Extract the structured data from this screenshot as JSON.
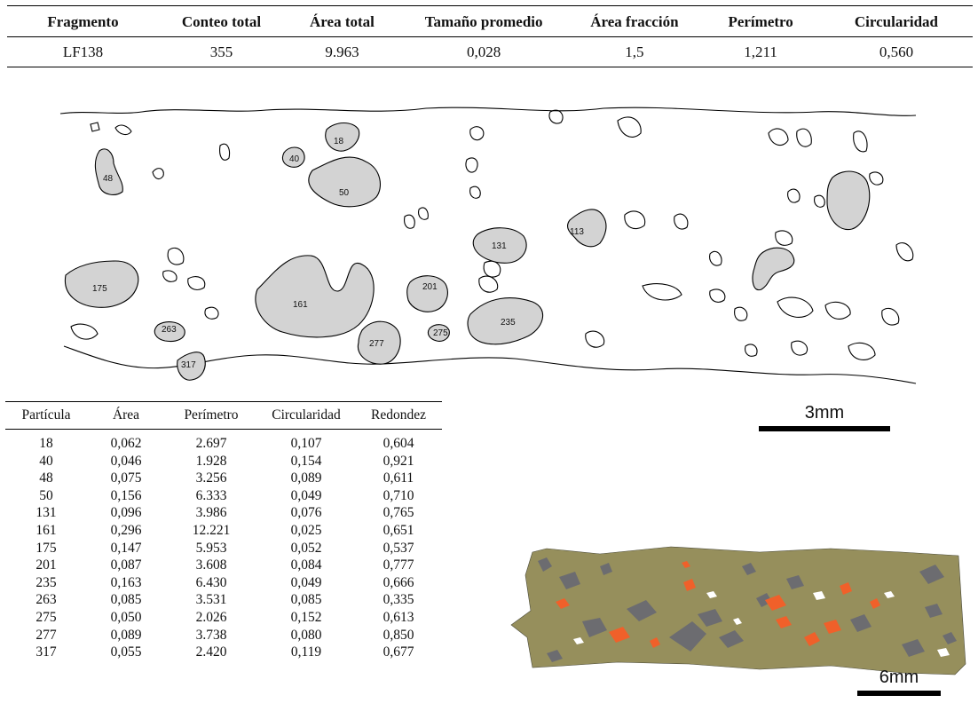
{
  "summary_table": {
    "headers": [
      "Fragmento",
      "Conteo total",
      "Área total",
      "Tamaño promedio",
      "Área fracción",
      "Perímetro",
      "Circularidad"
    ],
    "row": [
      "LF138",
      "355",
      "9.963",
      "0,028",
      "1,5",
      "1,211",
      "0,560"
    ]
  },
  "figure": {
    "particle_labels": [
      "18",
      "40",
      "48",
      "50",
      "131",
      "113",
      "175",
      "161",
      "201",
      "235",
      "263",
      "275",
      "277",
      "317"
    ]
  },
  "scale_bars": {
    "top": "3mm",
    "bottom": "6mm"
  },
  "particle_table": {
    "headers": [
      "Partícula",
      "Área",
      "Perímetro",
      "Circularidad",
      "Redondez"
    ],
    "rows": [
      [
        "18",
        "0,062",
        "2.697",
        "0,107",
        "0,604"
      ],
      [
        "40",
        "0,046",
        "1.928",
        "0,154",
        "0,921"
      ],
      [
        "48",
        "0,075",
        "3.256",
        "0,089",
        "0,611"
      ],
      [
        "50",
        "0,156",
        "6.333",
        "0,049",
        "0,710"
      ],
      [
        "131",
        "0,096",
        "3.986",
        "0,076",
        "0,765"
      ],
      [
        "161",
        "0,296",
        "12.221",
        "0,025",
        "0,651"
      ],
      [
        "175",
        "0,147",
        "5.953",
        "0,052",
        "0,537"
      ],
      [
        "201",
        "0,087",
        "3.608",
        "0,084",
        "0,777"
      ],
      [
        "235",
        "0,163",
        "6.430",
        "0,049",
        "0,666"
      ],
      [
        "263",
        "0,085",
        "3.531",
        "0,085",
        "0,335"
      ],
      [
        "275",
        "0,050",
        "2.026",
        "0,152",
        "0,613"
      ],
      [
        "277",
        "0,089",
        "3.738",
        "0,080",
        "0,850"
      ],
      [
        "317",
        "0,055",
        "2.420",
        "0,119",
        "0,677"
      ]
    ]
  },
  "colors": {
    "particle_fill": "#d3d3d3",
    "matrix": "#968f5c",
    "grey_inclusion": "#6c6c70",
    "orange_inclusion": "#f0602a"
  }
}
